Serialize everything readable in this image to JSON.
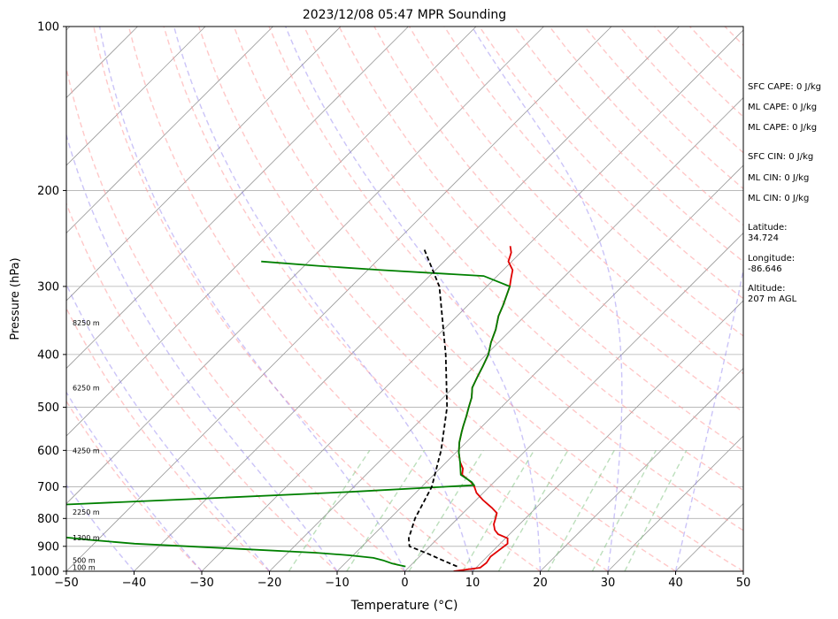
{
  "chart_data": {
    "type": "skew-t",
    "title": "2023/12/08 05:47 MPR Sounding",
    "xlabel": "Temperature (°C)",
    "ylabel": "Pressure (hPa)",
    "xlim": [
      -50,
      50
    ],
    "ylim": [
      1000,
      100
    ],
    "y_scale": "log",
    "grid": true,
    "x_ticks": [
      "−50",
      "−40",
      "−30",
      "−20",
      "−10",
      "0",
      "10",
      "20",
      "30",
      "40",
      "50"
    ],
    "x_tick_values": [
      -50,
      -40,
      -30,
      -20,
      -10,
      0,
      10,
      20,
      30,
      40,
      50
    ],
    "y_tick_values": [
      1000,
      900,
      800,
      700,
      600,
      500,
      400,
      300,
      200,
      100
    ],
    "height_labels": [
      {
        "text": "100 m",
        "p": 984
      },
      {
        "text": "500 m",
        "p": 955
      },
      {
        "text": "1300 m",
        "p": 868
      },
      {
        "text": "2250 m",
        "p": 778
      },
      {
        "text": "4250 m",
        "p": 600
      },
      {
        "text": "6250 m",
        "p": 460
      },
      {
        "text": "8250 m",
        "p": 350
      }
    ],
    "series": [
      {
        "role": "temperature",
        "color": "#e00000",
        "points": [
          [
            7.2,
            1000
          ],
          [
            10.6,
            985
          ],
          [
            10.8,
            965
          ],
          [
            10.5,
            940
          ],
          [
            10.8,
            915
          ],
          [
            11.1,
            890
          ],
          [
            10.3,
            870
          ],
          [
            8.3,
            855
          ],
          [
            7.2,
            840
          ],
          [
            6.2,
            820
          ],
          [
            5.6,
            800
          ],
          [
            5.0,
            782
          ],
          [
            3.5,
            765
          ],
          [
            1.0,
            740
          ],
          [
            -1.0,
            718
          ],
          [
            -2.2,
            700
          ],
          [
            -3.4,
            686
          ],
          [
            -5.8,
            665
          ],
          [
            -6.6,
            648
          ],
          [
            -8.0,
            630
          ],
          [
            -9.6,
            605
          ],
          [
            -11.0,
            580
          ],
          [
            -12.2,
            555
          ],
          [
            -12.8,
            542
          ],
          [
            -13.8,
            520
          ],
          [
            -14.8,
            500
          ],
          [
            -15.8,
            480
          ],
          [
            -17.2,
            460
          ],
          [
            -18.0,
            440
          ],
          [
            -18.8,
            420
          ],
          [
            -19.7,
            400
          ],
          [
            -21.1,
            380
          ],
          [
            -22.3,
            360
          ],
          [
            -23.9,
            340
          ],
          [
            -24.8,
            325
          ],
          [
            -26.6,
            300
          ],
          [
            -27.6,
            290
          ],
          [
            -28.6,
            280
          ],
          [
            -30.5,
            270
          ],
          [
            -31.4,
            260
          ],
          [
            -32.5,
            253
          ]
        ]
      },
      {
        "role": "dewpoint",
        "color": "#008000",
        "points": [
          [
            -0.6,
            980
          ],
          [
            -1.6,
            975
          ],
          [
            -3.0,
            968
          ],
          [
            -4.8,
            955
          ],
          [
            -6.6,
            945
          ],
          [
            -10.5,
            935
          ],
          [
            -15.8,
            925
          ],
          [
            -27.5,
            910
          ],
          [
            -44.0,
            890
          ],
          [
            -51.5,
            875
          ],
          [
            -59.0,
            858
          ],
          [
            -64.0,
            848
          ],
          [
            -70.0,
            820
          ],
          [
            -66.0,
            760
          ],
          [
            -40.0,
            735
          ],
          [
            -20.0,
            715
          ],
          [
            -2.5,
            695
          ],
          [
            -3.3,
            686
          ],
          [
            -6.0,
            665
          ],
          [
            -8.0,
            630
          ],
          [
            -9.6,
            605
          ],
          [
            -11.0,
            580
          ],
          [
            -12.2,
            555
          ],
          [
            -12.8,
            542
          ],
          [
            -13.8,
            520
          ],
          [
            -14.8,
            500
          ],
          [
            -15.8,
            480
          ],
          [
            -17.2,
            460
          ],
          [
            -18.0,
            440
          ],
          [
            -18.8,
            420
          ],
          [
            -19.7,
            400
          ],
          [
            -21.1,
            380
          ],
          [
            -22.3,
            360
          ],
          [
            -23.9,
            340
          ],
          [
            -24.8,
            325
          ],
          [
            -26.6,
            300
          ],
          [
            -32.0,
            287
          ],
          [
            -48.0,
            280
          ],
          [
            -58.0,
            275
          ],
          [
            -67.0,
            270
          ]
        ]
      },
      {
        "role": "parcel",
        "color": "#000000",
        "points": [
          [
            7.0,
            980
          ],
          [
            4.0,
            955
          ],
          [
            1.0,
            930
          ],
          [
            -3.0,
            900
          ],
          [
            -4.3,
            870
          ],
          [
            -6.3,
            800
          ],
          [
            -8.5,
            700
          ],
          [
            -12.5,
            600
          ],
          [
            -18.0,
            500
          ],
          [
            -26.0,
            400
          ],
          [
            -37.0,
            300
          ],
          [
            -45.0,
            255
          ]
        ]
      }
    ]
  },
  "side_text": {
    "sfc_cape": "SFC CAPE: 0 J/kg",
    "ml_cape_1": "ML CAPE: 0 J/kg",
    "ml_cape_2": "ML CAPE: 0 J/kg",
    "sfc_cin": "SFC CIN: 0 J/kg",
    "ml_cin_1": "ML CIN: 0 J/kg",
    "ml_cin_2": "ML CIN: 0 J/kg",
    "latitude": "Latitude:\n34.724",
    "longitude": "Longitude:\n-86.646",
    "altitude": "Altitude:\n207 m AGL"
  },
  "colors": {
    "dry_adiabat": "#ff9a9a",
    "moist_adiabat": "#8c7cf0",
    "mixing_ratio": "#7ac07a",
    "isotherm": "#9a9a9a"
  }
}
